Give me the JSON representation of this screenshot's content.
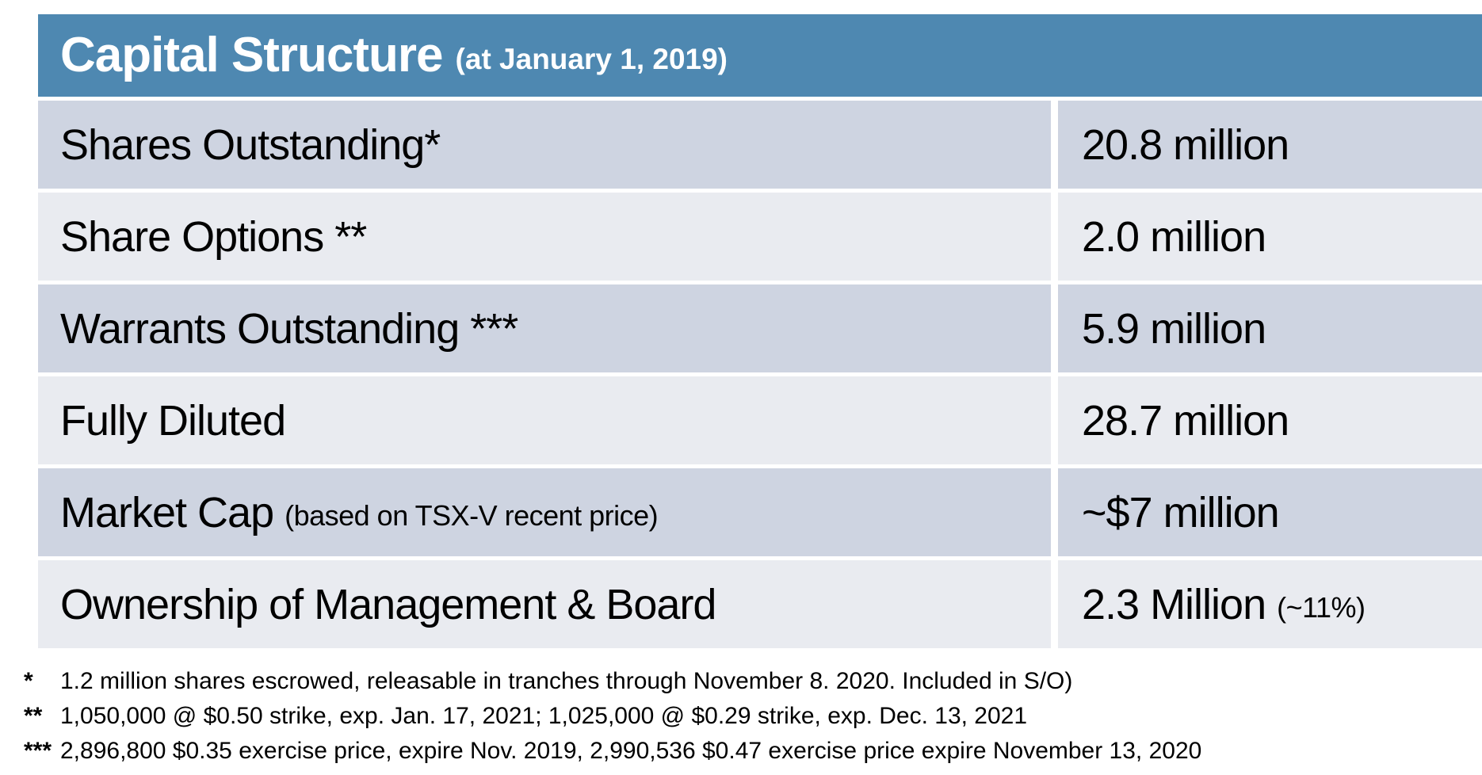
{
  "header": {
    "title": "Capital Structure",
    "subtitle": "(at January 1, 2019)"
  },
  "table": {
    "rows": [
      {
        "label": "Shares Outstanding*",
        "label_note": "",
        "value": "20.8 million",
        "value_note": ""
      },
      {
        "label": "Share Options **",
        "label_note": "",
        "value": "2.0 million",
        "value_note": ""
      },
      {
        "label": "Warrants Outstanding ***",
        "label_note": "",
        "value": "5.9 million",
        "value_note": ""
      },
      {
        "label": "Fully Diluted",
        "label_note": "",
        "value": "28.7 million",
        "value_note": ""
      },
      {
        "label": "Market Cap",
        "label_note": "(based on TSX-V recent price)",
        "value": "~$7 million",
        "value_note": ""
      },
      {
        "label": "Ownership of Management & Board",
        "label_note": "",
        "value": "2.3 Million",
        "value_note": "(~11%)"
      }
    ]
  },
  "footnotes": [
    {
      "marker": "*",
      "text": "1.2 million shares escrowed, releasable in tranches through November 8. 2020. Included in S/O)"
    },
    {
      "marker": "**",
      "text": "1,050,000 @ $0.50 strike, exp. Jan. 17, 2021; 1,025,000 @ $0.29 strike, exp. Dec. 13, 2021"
    },
    {
      "marker": "***",
      "text": "2,896,800 $0.35 exercise price, expire Nov. 2019, 2,990,536 $0.47 exercise price expire November 13, 2020"
    }
  ],
  "colors": {
    "header_bg": "#4E88B1",
    "row_dark": "#CED4E1",
    "row_light": "#E9EBF0",
    "header_text": "#FFFFFF",
    "body_text": "#000000"
  }
}
